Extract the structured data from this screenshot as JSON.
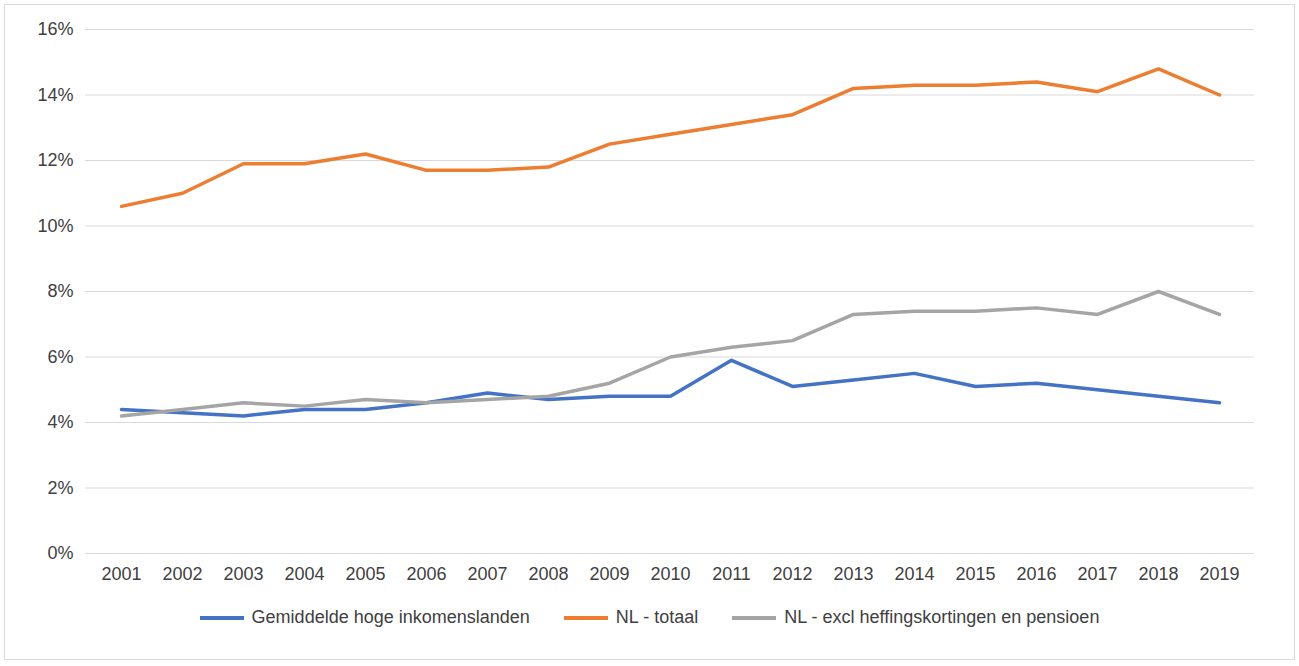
{
  "chart_data": {
    "type": "line",
    "categories": [
      "2001",
      "2002",
      "2003",
      "2004",
      "2005",
      "2006",
      "2007",
      "2008",
      "2009",
      "2010",
      "2011",
      "2012",
      "2013",
      "2014",
      "2015",
      "2016",
      "2017",
      "2018",
      "2019"
    ],
    "series": [
      {
        "name": "Gemiddelde hoge inkomenslanden",
        "color": "#4472c4",
        "values": [
          4.4,
          4.3,
          4.2,
          4.4,
          4.4,
          4.6,
          4.9,
          4.7,
          4.8,
          4.8,
          5.9,
          5.1,
          5.3,
          5.5,
          5.1,
          5.2,
          5.0,
          4.8,
          4.6
        ]
      },
      {
        "name": "NL - totaal",
        "color": "#ed7d31",
        "values": [
          10.6,
          11.0,
          11.9,
          11.9,
          12.2,
          11.7,
          11.7,
          11.8,
          12.5,
          12.8,
          13.1,
          13.4,
          14.2,
          14.3,
          14.3,
          14.4,
          14.1,
          14.8,
          14.0
        ]
      },
      {
        "name": "NL - excl heffingskortingen en pensioen",
        "color": "#a5a5a5",
        "values": [
          4.2,
          4.4,
          4.6,
          4.5,
          4.7,
          4.6,
          4.7,
          4.8,
          5.2,
          6.0,
          6.3,
          6.5,
          7.3,
          7.4,
          7.4,
          7.5,
          7.3,
          8.0,
          7.3
        ]
      }
    ],
    "ylim": [
      0,
      16
    ],
    "yticks": [
      {
        "value": 0,
        "label": "0%"
      },
      {
        "value": 2,
        "label": "2%"
      },
      {
        "value": 4,
        "label": "4%"
      },
      {
        "value": 6,
        "label": "6%"
      },
      {
        "value": 8,
        "label": "8%"
      },
      {
        "value": 10,
        "label": "10%"
      },
      {
        "value": 12,
        "label": "12%"
      },
      {
        "value": 14,
        "label": "14%"
      },
      {
        "value": 16,
        "label": "16%"
      }
    ],
    "grid": true,
    "legend": "bottom"
  }
}
